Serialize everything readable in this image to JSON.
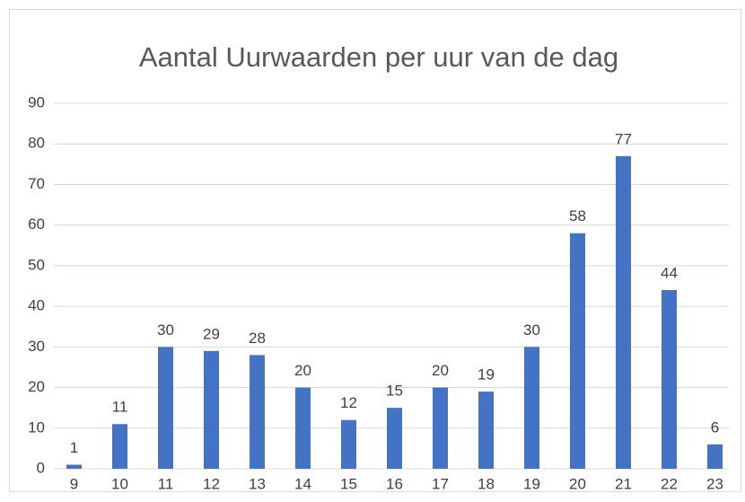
{
  "chart_data": {
    "type": "bar",
    "title": "Aantal Uurwaarden per uur van de dag",
    "categories": [
      "9",
      "10",
      "11",
      "12",
      "13",
      "14",
      "15",
      "16",
      "17",
      "18",
      "19",
      "20",
      "21",
      "22",
      "23"
    ],
    "values": [
      1,
      11,
      30,
      29,
      28,
      20,
      12,
      15,
      20,
      19,
      30,
      58,
      77,
      44,
      6
    ],
    "color": "#4472c4",
    "ylim": [
      0,
      90
    ],
    "yticks": [
      0,
      10,
      20,
      30,
      40,
      50,
      60,
      70,
      80,
      90
    ],
    "grid": true
  }
}
